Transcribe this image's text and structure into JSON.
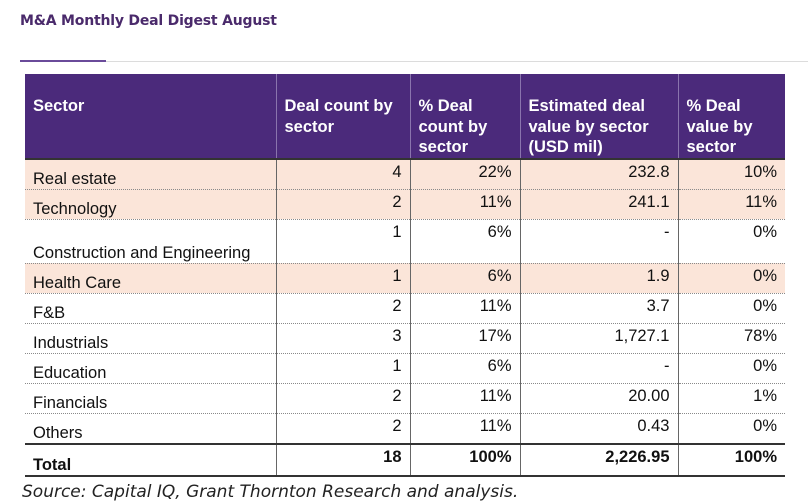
{
  "header": {
    "title": "M&A Monthly Deal Digest August"
  },
  "table": {
    "columns": [
      "Sector",
      "Deal count by sector",
      "% Deal count by sector",
      "Estimated deal value by sector (USD mil)",
      "% Deal value by sector"
    ],
    "rows": [
      {
        "sector": "Real estate",
        "count": "4",
        "count_pct": "22%",
        "value": "232.8",
        "value_pct": "10%"
      },
      {
        "sector": "Technology",
        "count": "2",
        "count_pct": "11%",
        "value": "241.1",
        "value_pct": "11%"
      },
      {
        "sector": "Construction and Engineering",
        "count": "1",
        "count_pct": "6%",
        "value": "-",
        "value_pct": "0%"
      },
      {
        "sector": "Health Care",
        "count": "1",
        "count_pct": "6%",
        "value": "1.9",
        "value_pct": "0%"
      },
      {
        "sector": "F&B",
        "count": "2",
        "count_pct": "11%",
        "value": "3.7",
        "value_pct": "0%"
      },
      {
        "sector": "Industrials",
        "count": "3",
        "count_pct": "17%",
        "value": "1,727.1",
        "value_pct": "78%"
      },
      {
        "sector": "Education",
        "count": "1",
        "count_pct": "6%",
        "value": "-",
        "value_pct": "0%"
      },
      {
        "sector": "Financials",
        "count": "2",
        "count_pct": "11%",
        "value": "20.00",
        "value_pct": "1%"
      },
      {
        "sector": "Others",
        "count": "2",
        "count_pct": "11%",
        "value": "0.43",
        "value_pct": "0%"
      }
    ],
    "total": {
      "sector": "Total",
      "count": "18",
      "count_pct": "100%",
      "value": "2,226.95",
      "value_pct": "100%"
    },
    "colors": {
      "header_bg": "#4b2a7b",
      "highlight_bg": "#fbe5d9"
    }
  },
  "footer": {
    "source": "Source: Capital IQ, Grant Thornton Research and analysis."
  }
}
